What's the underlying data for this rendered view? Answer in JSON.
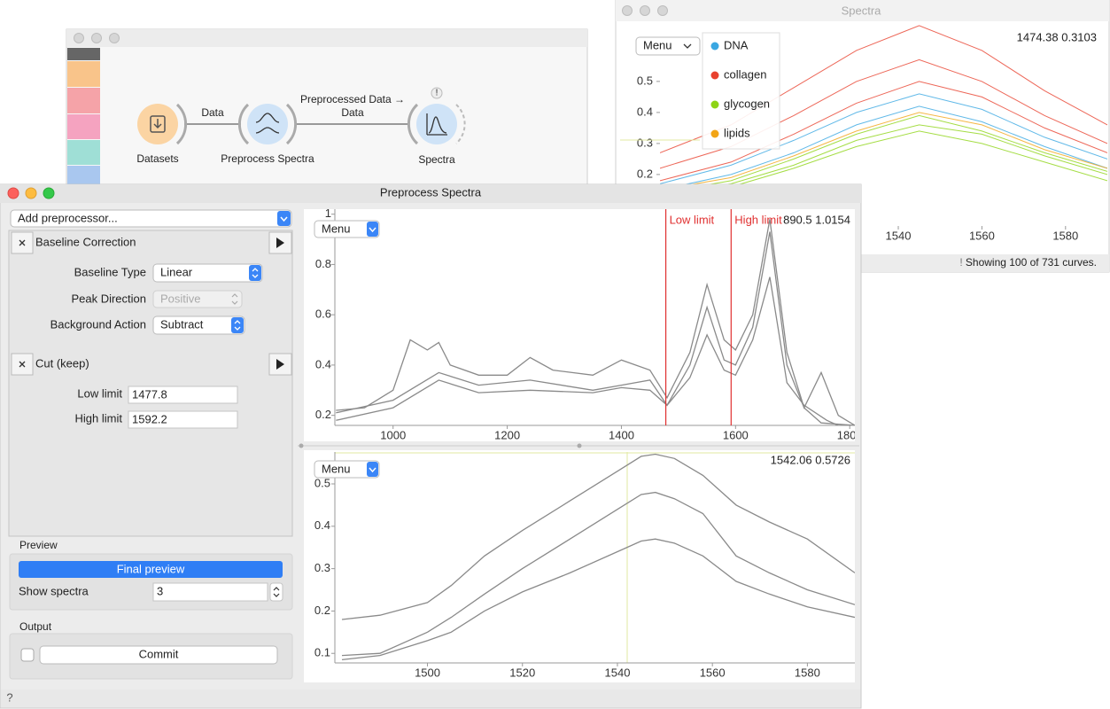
{
  "canvas_window": {
    "nodes": [
      {
        "label": "Datasets"
      },
      {
        "label": "Preprocess Spectra"
      },
      {
        "label": "Spectra",
        "warning": "!"
      }
    ],
    "links": [
      {
        "label": [
          "Data"
        ]
      },
      {
        "label": [
          "Preprocessed Data →",
          "Data"
        ]
      }
    ]
  },
  "spectra_window": {
    "title": "Spectra",
    "menu": "Menu",
    "coordinates": "1474.38 0.3103",
    "status_icon": "!",
    "status": "Showing 100 of 731 curves.",
    "plot": {
      "xlim": [
        1483,
        1590
      ],
      "ylim": [
        0.034,
        0.691
      ],
      "xticks": [
        1540,
        1560,
        1580
      ],
      "yticks": [
        0.2,
        0.3,
        0.4,
        0.5
      ],
      "series": [
        {
          "name": "DNA",
          "color": "#3aa7e2",
          "curves": [
            {
              "x": [
                1483,
                1500,
                1515,
                1530,
                1545,
                1560,
                1575,
                1590
              ],
              "y": [
                0.17,
                0.23,
                0.31,
                0.4,
                0.46,
                0.41,
                0.32,
                0.25
              ]
            },
            {
              "x": [
                1483,
                1500,
                1515,
                1530,
                1545,
                1560,
                1575,
                1590
              ],
              "y": [
                0.15,
                0.2,
                0.27,
                0.36,
                0.42,
                0.37,
                0.29,
                0.22
              ]
            }
          ]
        },
        {
          "name": "collagen",
          "color": "#e8412e",
          "curves": [
            {
              "x": [
                1483,
                1500,
                1515,
                1530,
                1545,
                1560,
                1575,
                1590
              ],
              "y": [
                0.27,
                0.36,
                0.48,
                0.6,
                0.68,
                0.6,
                0.47,
                0.36
              ]
            },
            {
              "x": [
                1483,
                1500,
                1515,
                1530,
                1545,
                1560,
                1575,
                1590
              ],
              "y": [
                0.22,
                0.29,
                0.39,
                0.5,
                0.57,
                0.5,
                0.39,
                0.3
              ]
            },
            {
              "x": [
                1483,
                1500,
                1515,
                1530,
                1545,
                1560,
                1575,
                1590
              ],
              "y": [
                0.18,
                0.24,
                0.33,
                0.43,
                0.5,
                0.45,
                0.35,
                0.27
              ]
            }
          ]
        },
        {
          "name": "glycogen",
          "color": "#8ed416",
          "curves": [
            {
              "x": [
                1483,
                1500,
                1515,
                1530,
                1545,
                1560,
                1575,
                1590
              ],
              "y": [
                0.14,
                0.18,
                0.25,
                0.33,
                0.39,
                0.34,
                0.27,
                0.21
              ]
            },
            {
              "x": [
                1483,
                1500,
                1515,
                1530,
                1545,
                1560,
                1575,
                1590
              ],
              "y": [
                0.12,
                0.16,
                0.22,
                0.29,
                0.34,
                0.3,
                0.24,
                0.18
              ]
            },
            {
              "x": [
                1483,
                1500,
                1515,
                1530,
                1545,
                1560,
                1575,
                1590
              ],
              "y": [
                0.13,
                0.17,
                0.23,
                0.31,
                0.36,
                0.33,
                0.26,
                0.2
              ]
            }
          ]
        },
        {
          "name": "lipids",
          "color": "#f2a516",
          "curves": [
            {
              "x": [
                1483,
                1500,
                1515,
                1530,
                1545,
                1560,
                1575,
                1590
              ],
              "y": [
                0.15,
                0.19,
                0.26,
                0.34,
                0.4,
                0.36,
                0.28,
                0.22
              ]
            }
          ]
        }
      ]
    }
  },
  "preprocess_window": {
    "title": "Preprocess Spectra",
    "add_preprocessor": "Add preprocessor...",
    "preprocessors": [
      {
        "title": "Baseline Correction",
        "fields": [
          {
            "label": "Baseline Type",
            "value": "Linear"
          },
          {
            "label": "Peak Direction",
            "value": "Positive"
          },
          {
            "label": "Background Action",
            "value": "Subtract"
          }
        ]
      },
      {
        "title": "Cut (keep)",
        "fields": [
          {
            "label": "Low limit",
            "value": 1477.8
          },
          {
            "label": "High limit",
            "value": 1592.2
          }
        ]
      }
    ],
    "preview": {
      "heading": "Preview",
      "button": "Final preview",
      "show_spectra_label": "Show spectra",
      "show_spectra": 3
    },
    "output": {
      "heading": "Output",
      "button": "Commit"
    },
    "help": "?",
    "top_plot": {
      "menu": "Menu",
      "coordinates": "890.5 1.0154",
      "limit_labels": [
        "Low limit",
        "High limit"
      ],
      "xlim": [
        898,
        1809
      ],
      "ylim": [
        0.16,
        1.02
      ],
      "xticks": [
        1000,
        1200,
        1400,
        1600,
        1800
      ],
      "yticks": [
        0.2,
        0.4,
        0.6,
        0.8,
        1
      ],
      "series": [
        {
          "color": "#8a8a8a",
          "curves": [
            {
              "x": [
                900,
                950,
                1000,
                1030,
                1060,
                1080,
                1100,
                1150,
                1200,
                1240,
                1280,
                1350,
                1400,
                1450,
                1480,
                1520,
                1550,
                1580,
                1600,
                1630,
                1660,
                1690,
                1720,
                1750,
                1809
              ],
              "y": [
                0.22,
                0.23,
                0.3,
                0.5,
                0.46,
                0.49,
                0.4,
                0.36,
                0.36,
                0.43,
                0.38,
                0.36,
                0.42,
                0.38,
                0.27,
                0.45,
                0.72,
                0.5,
                0.46,
                0.6,
                0.98,
                0.45,
                0.23,
                0.17,
                0.16
              ]
            },
            {
              "x": [
                900,
                1000,
                1080,
                1150,
                1240,
                1350,
                1400,
                1450,
                1480,
                1520,
                1550,
                1580,
                1600,
                1630,
                1660,
                1690,
                1720,
                1750,
                1780,
                1809
              ],
              "y": [
                0.21,
                0.26,
                0.37,
                0.32,
                0.34,
                0.3,
                0.32,
                0.34,
                0.24,
                0.4,
                0.63,
                0.42,
                0.4,
                0.55,
                0.93,
                0.4,
                0.23,
                0.37,
                0.2,
                0.16
              ]
            },
            {
              "x": [
                900,
                1000,
                1080,
                1150,
                1240,
                1350,
                1400,
                1450,
                1480,
                1520,
                1550,
                1580,
                1600,
                1630,
                1660,
                1690,
                1720,
                1760,
                1809
              ],
              "y": [
                0.18,
                0.23,
                0.34,
                0.29,
                0.3,
                0.29,
                0.31,
                0.3,
                0.24,
                0.35,
                0.52,
                0.38,
                0.36,
                0.5,
                0.75,
                0.33,
                0.24,
                0.18,
                0.13
              ]
            }
          ]
        }
      ]
    },
    "bottom_plot": {
      "menu": "Menu",
      "coordinates": "1542.06 0.5726",
      "xlim": [
        1480.5,
        1590
      ],
      "ylim": [
        0.0775,
        0.5753
      ],
      "xticks": [
        1500,
        1520,
        1540,
        1560,
        1580
      ],
      "yticks": [
        0.1,
        0.2,
        0.3,
        0.4,
        0.5
      ],
      "series": [
        {
          "color": "#8a8a8a",
          "curves": [
            {
              "x": [
                1482,
                1490,
                1500,
                1505,
                1512,
                1520,
                1530,
                1540,
                1545,
                1548,
                1552,
                1558,
                1565,
                1572,
                1580,
                1590
              ],
              "y": [
                0.18,
                0.19,
                0.22,
                0.26,
                0.33,
                0.39,
                0.46,
                0.53,
                0.565,
                0.57,
                0.56,
                0.52,
                0.45,
                0.41,
                0.37,
                0.29
              ]
            },
            {
              "x": [
                1482,
                1490,
                1500,
                1505,
                1512,
                1520,
                1530,
                1540,
                1545,
                1548,
                1552,
                1558,
                1565,
                1572,
                1580,
                1590
              ],
              "y": [
                0.095,
                0.1,
                0.15,
                0.185,
                0.24,
                0.3,
                0.37,
                0.44,
                0.475,
                0.48,
                0.465,
                0.43,
                0.33,
                0.29,
                0.25,
                0.215
              ]
            },
            {
              "x": [
                1482,
                1490,
                1500,
                1505,
                1512,
                1520,
                1530,
                1540,
                1545,
                1548,
                1552,
                1558,
                1565,
                1572,
                1580,
                1590
              ],
              "y": [
                0.085,
                0.095,
                0.13,
                0.15,
                0.2,
                0.245,
                0.29,
                0.34,
                0.365,
                0.37,
                0.36,
                0.33,
                0.27,
                0.24,
                0.21,
                0.185
              ]
            }
          ]
        }
      ]
    }
  }
}
